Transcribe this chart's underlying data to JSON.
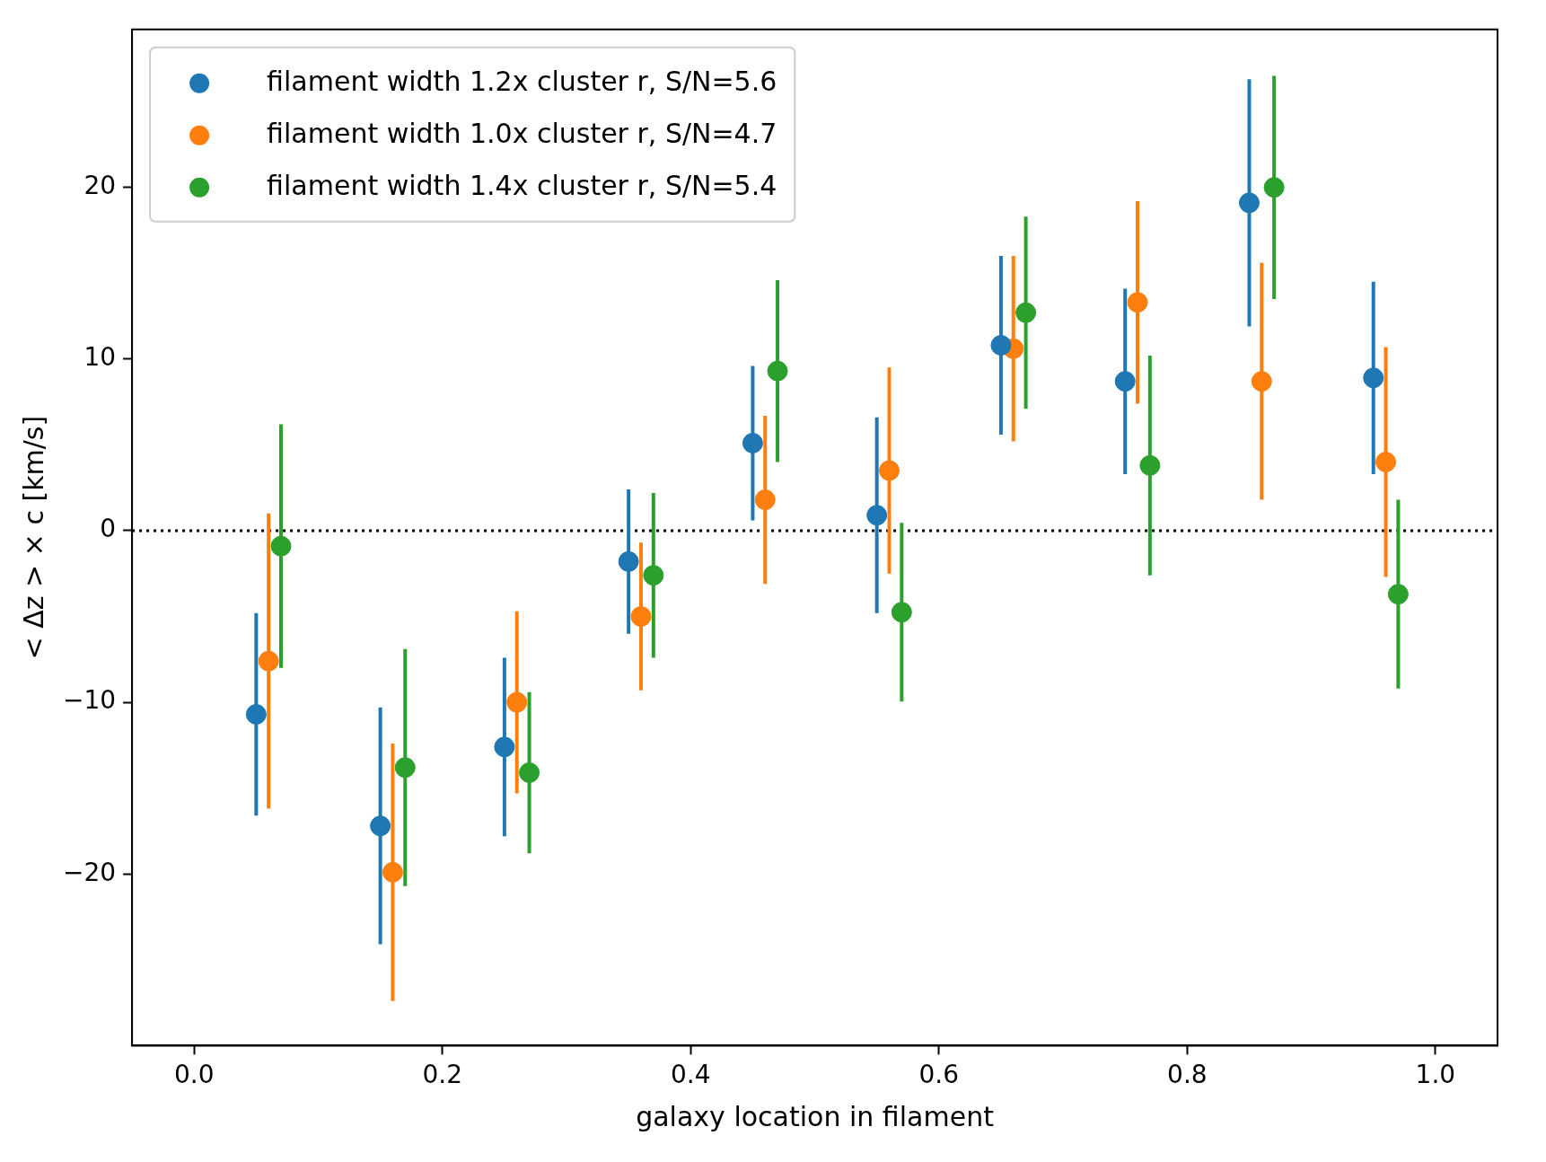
{
  "chart_data": {
    "type": "scatter",
    "xlabel": "galaxy location in filament",
    "ylabel": "< Δz > × c [km/s]",
    "xlim": [
      -0.05,
      1.05
    ],
    "ylim": [
      -30,
      29.2
    ],
    "xticks": [
      {
        "value": 0,
        "label": "0.0"
      },
      {
        "value": 0.2,
        "label": "0.2"
      },
      {
        "value": 0.4,
        "label": "0.4"
      },
      {
        "value": 0.6,
        "label": "0.6"
      },
      {
        "value": 0.8,
        "label": "0.8"
      },
      {
        "value": 1,
        "label": "1.0"
      }
    ],
    "yticks": [
      -20,
      -10,
      0,
      10,
      20
    ],
    "marker": "circle",
    "legend": "top left",
    "ref_lines": [
      {
        "axis": "y",
        "value": 0,
        "color": "#000000",
        "line_style": "dotted"
      }
    ],
    "series": [
      {
        "name": "filament width 1.2x cluster r, S/N=5.6",
        "color": "#1f77b4",
        "x": [
          0.05,
          0.15,
          0.25,
          0.35,
          0.45,
          0.55,
          0.65,
          0.75,
          0.85,
          0.95
        ],
        "values": [
          -10.7,
          -17.2,
          -12.6,
          -1.8,
          5.1,
          0.9,
          10.8,
          8.7,
          19.1,
          8.9
        ],
        "errors": [
          5.9,
          6.9,
          5.2,
          4.2,
          4.5,
          5.7,
          5.2,
          5.4,
          7.2,
          5.6
        ]
      },
      {
        "name": "filament width 1.0x cluster r, S/N=4.7",
        "color": "#ff7f0e",
        "x": [
          0.06,
          0.16,
          0.26,
          0.36,
          0.46,
          0.56,
          0.66,
          0.76,
          0.86,
          0.96
        ],
        "values": [
          -7.6,
          -19.9,
          -10.0,
          -5.0,
          1.8,
          3.5,
          10.6,
          13.3,
          8.7,
          4.0
        ],
        "errors": [
          8.6,
          7.5,
          5.3,
          4.3,
          4.9,
          6.0,
          5.4,
          5.9,
          6.9,
          6.7
        ]
      },
      {
        "name": "filament width 1.4x cluster r, S/N=5.4",
        "color": "#2ca02c",
        "x": [
          0.07,
          0.17,
          0.27,
          0.37,
          0.47,
          0.57,
          0.67,
          0.77,
          0.87,
          0.97
        ],
        "values": [
          -0.9,
          -13.8,
          -14.1,
          -2.6,
          9.3,
          -4.75,
          12.7,
          3.8,
          20.0,
          -3.7
        ],
        "errors": [
          7.1,
          6.9,
          4.7,
          4.8,
          5.3,
          5.2,
          5.6,
          6.4,
          6.5,
          5.5
        ]
      }
    ]
  }
}
